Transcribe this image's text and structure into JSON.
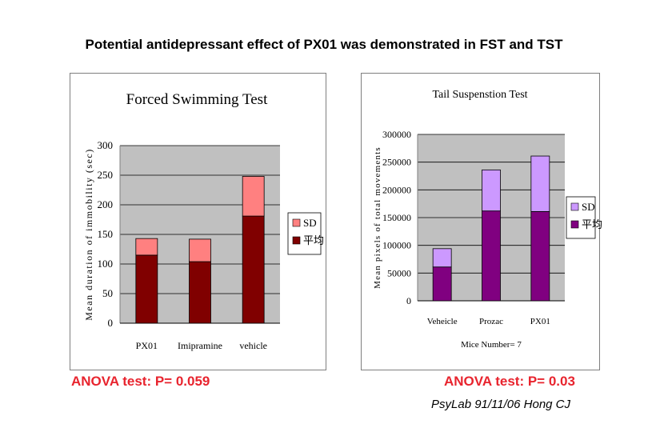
{
  "main_title": "Potential antidepressant effect of PX01 was demonstrated in FST and TST",
  "footer": {
    "anova_left": "ANOVA test: P= 0.059",
    "anova_right": "ANOVA test: P= 0.03",
    "credit": "PsyLab 91/11/06 Hong CJ"
  },
  "chart_data": [
    {
      "type": "bar",
      "stacked": true,
      "title": "Forced Swimming Test",
      "xlabel": "",
      "ylabel": "Mean duration of immobility (sec)",
      "ylim": [
        0,
        300
      ],
      "yticks": [
        0,
        50,
        100,
        150,
        200,
        250,
        300
      ],
      "categories": [
        "PX01",
        "Imipramine",
        "vehicle"
      ],
      "series": [
        {
          "name": "平均",
          "color": "#800000",
          "values": [
            115,
            104,
            181
          ]
        },
        {
          "name": "SD",
          "color": "#ff8080",
          "values": [
            28,
            38,
            67
          ]
        }
      ],
      "legend": [
        "SD",
        "平均"
      ],
      "legend_position": "right",
      "grid": true
    },
    {
      "type": "bar",
      "stacked": true,
      "title": "Tail Suspenstion Test",
      "xlabel": "Mice Number= 7",
      "ylabel": "Mean pixels of total movements",
      "ylim": [
        0,
        300000
      ],
      "yticks": [
        0,
        50000,
        100000,
        150000,
        200000,
        250000,
        300000
      ],
      "categories": [
        "Veheicle",
        "Prozac",
        "PX01"
      ],
      "series": [
        {
          "name": "平均",
          "color": "#800080",
          "values": [
            61000,
            162000,
            161000
          ]
        },
        {
          "name": "SD",
          "color": "#cc99ff",
          "values": [
            33000,
            74000,
            100000
          ]
        }
      ],
      "legend": [
        "SD",
        "平均"
      ],
      "legend_position": "right",
      "grid": true
    }
  ]
}
